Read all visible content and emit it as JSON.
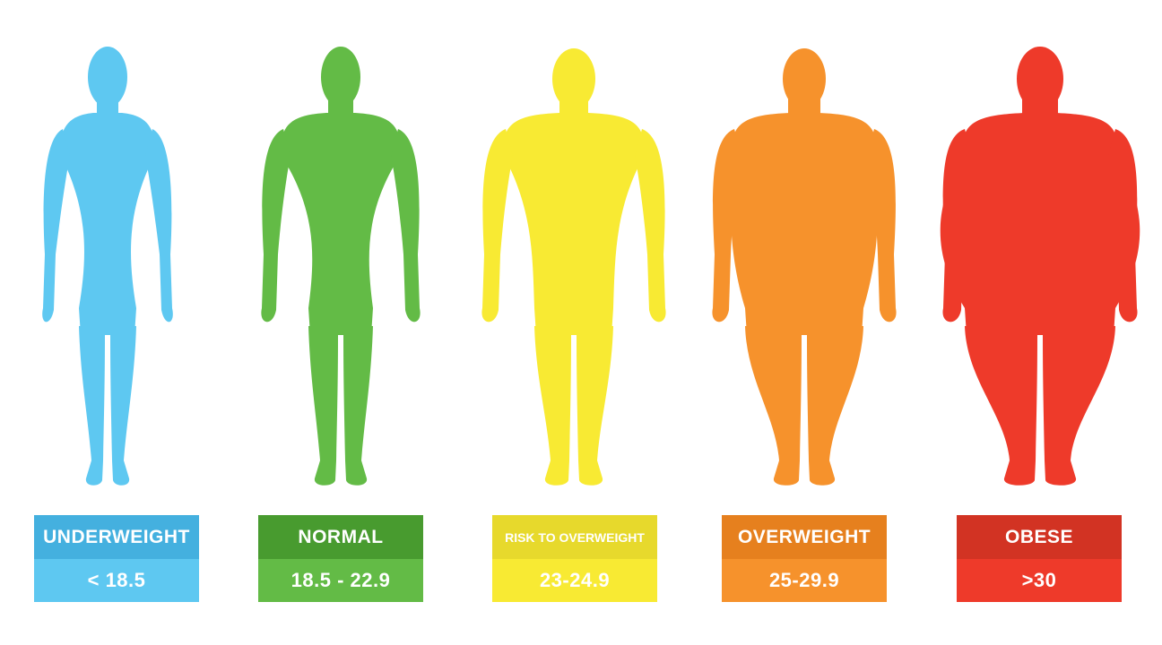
{
  "categories": [
    {
      "name": "UNDERWEIGHT",
      "range": "< 18.5",
      "body_color": "#5ec8f1",
      "header_color": "#44b0df",
      "value_color": "#5ec8f1",
      "icon": "thin-body-silhouette-icon"
    },
    {
      "name": "NORMAL",
      "range": "18.5 - 22.9",
      "body_color": "#63bb46",
      "header_color": "#489b2f",
      "value_color": "#63bb46",
      "icon": "normal-body-silhouette-icon"
    },
    {
      "name": "RISK TO OVERWEIGHT",
      "range": "23-24.9",
      "body_color": "#f8ea33",
      "header_color": "#e7d92c",
      "value_color": "#f8ea33",
      "icon": "slightly-heavy-body-silhouette-icon"
    },
    {
      "name": "OVERWEIGHT",
      "range": "25-29.9",
      "body_color": "#f6922c",
      "header_color": "#e6801e",
      "value_color": "#f6922c",
      "icon": "overweight-body-silhouette-icon"
    },
    {
      "name": "OBESE",
      "range": ">30",
      "body_color": "#ee3a2a",
      "header_color": "#d23323",
      "value_color": "#ee3a2a",
      "icon": "obese-body-silhouette-icon"
    }
  ]
}
